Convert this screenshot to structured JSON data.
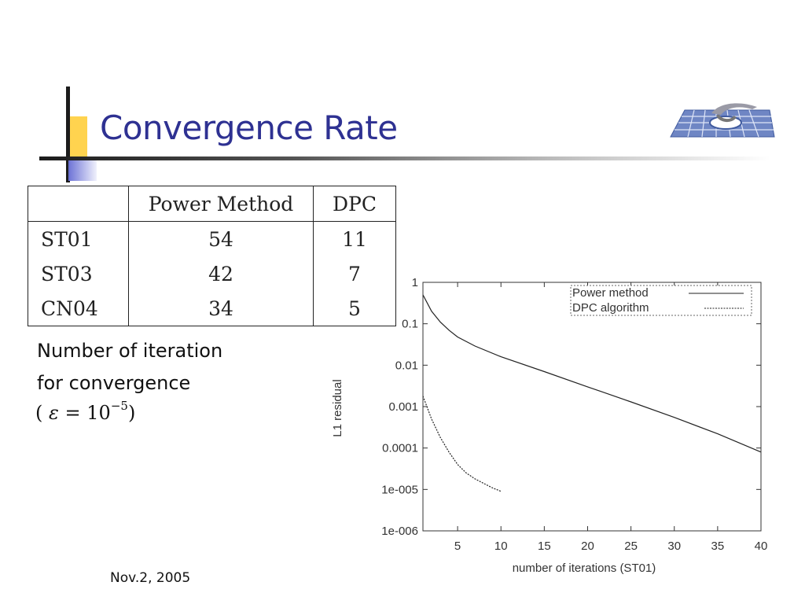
{
  "slide": {
    "title": "Convergence Rate",
    "caption_line1": "Number of iteration",
    "caption_line2": "for convergence",
    "formula": {
      "open": "(",
      "var": "ε",
      "eq": " = 10",
      "exp": "−5",
      "close": ")"
    },
    "date": "Nov.2, 2005"
  },
  "table": {
    "headers": [
      "",
      "Power Method",
      "DPC"
    ],
    "rows": [
      [
        "ST01",
        "54",
        "11"
      ],
      [
        "ST03",
        "42",
        "7"
      ],
      [
        "CN04",
        "34",
        "5"
      ]
    ]
  },
  "chart_data": {
    "type": "line",
    "xlabel": "number of iterations (ST01)",
    "ylabel": "L1 residual",
    "xlim": [
      1,
      40
    ],
    "ylim": [
      1e-06,
      1
    ],
    "yscale": "log",
    "xticks": [
      5,
      10,
      15,
      20,
      25,
      30,
      35,
      40
    ],
    "yticks": [
      {
        "value": 1,
        "label": "1"
      },
      {
        "value": 0.1,
        "label": "0.1"
      },
      {
        "value": 0.01,
        "label": "0.01"
      },
      {
        "value": 0.001,
        "label": "0.001"
      },
      {
        "value": 0.0001,
        "label": "0.0001"
      },
      {
        "value": 1e-05,
        "label": "1e-005"
      },
      {
        "value": 1e-06,
        "label": "1e-006"
      }
    ],
    "legend_position": "top-right",
    "series": [
      {
        "name": "Power method",
        "style": "solid",
        "x": [
          1,
          2,
          3,
          4,
          5,
          7,
          10,
          15,
          20,
          25,
          30,
          35,
          40
        ],
        "y": [
          0.5,
          0.2,
          0.11,
          0.07,
          0.048,
          0.029,
          0.016,
          0.007,
          0.003,
          0.0013,
          0.00055,
          0.00022,
          8e-05
        ]
      },
      {
        "name": "DPC algorithm",
        "style": "dashed",
        "x": [
          1,
          2,
          3,
          4,
          5,
          6,
          7,
          8,
          9,
          10
        ],
        "y": [
          0.0018,
          0.0005,
          0.00018,
          8e-05,
          4e-05,
          2.5e-05,
          1.8e-05,
          1.4e-05,
          1.1e-05,
          9e-06
        ]
      }
    ]
  }
}
